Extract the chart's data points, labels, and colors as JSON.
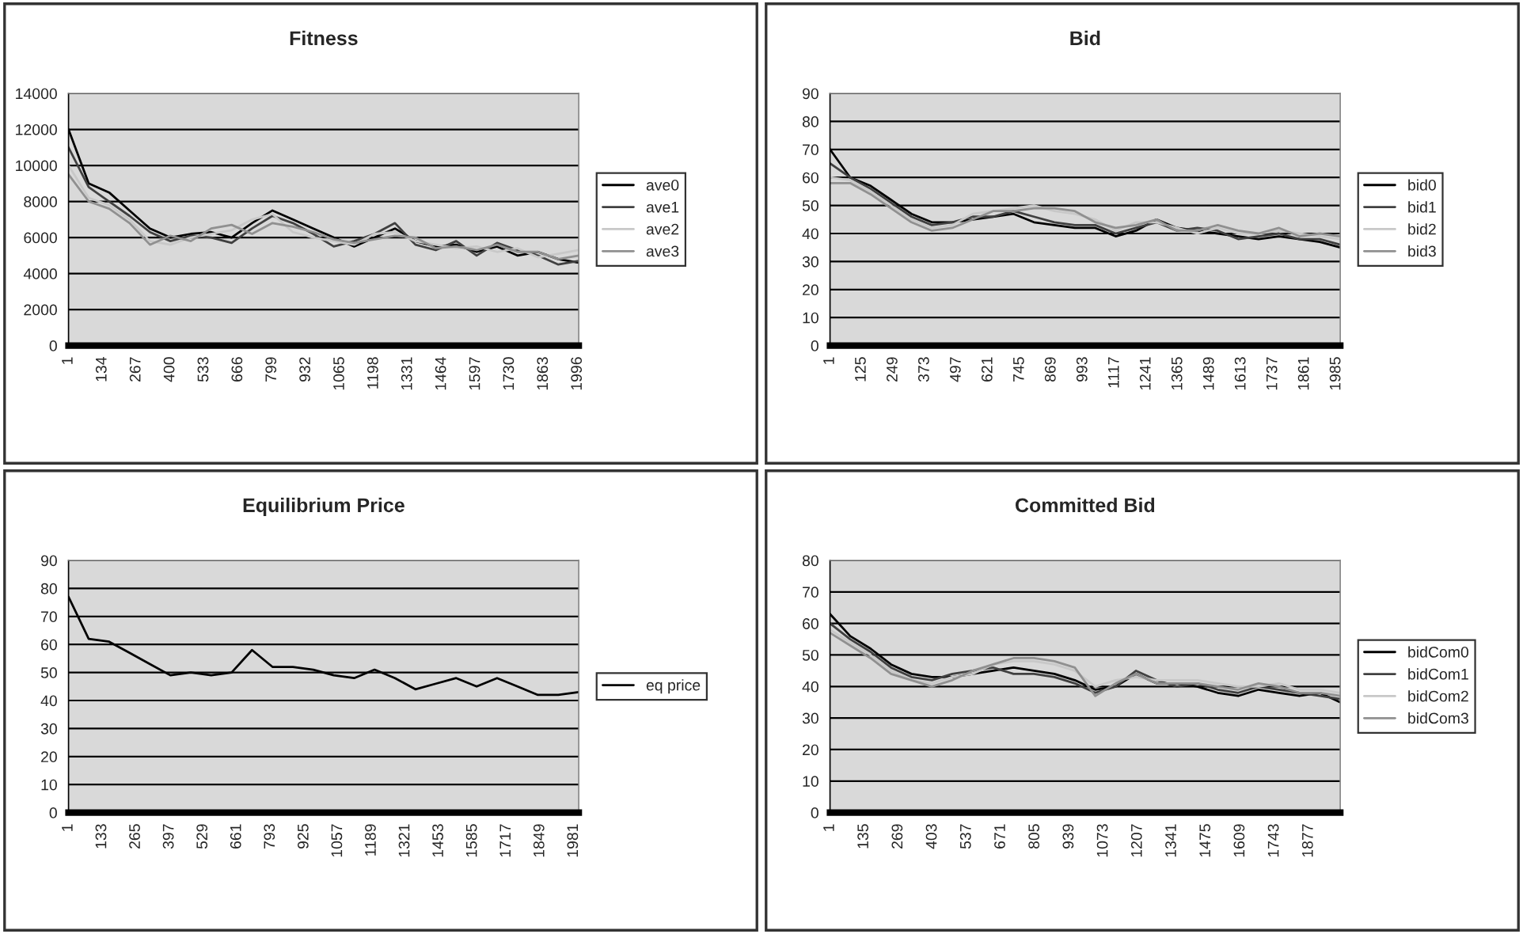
{
  "chart_data": [
    {
      "type": "line",
      "title": "Fitness",
      "x": [
        1,
        80,
        160,
        240,
        320,
        400,
        480,
        560,
        640,
        720,
        800,
        880,
        960,
        1040,
        1120,
        1200,
        1280,
        1360,
        1440,
        1520,
        1600,
        1680,
        1760,
        1840,
        1920,
        2000
      ],
      "series": [
        {
          "name": "ave0",
          "color": "#000000",
          "values": [
            12000,
            9000,
            8500,
            7500,
            6500,
            6000,
            6200,
            6300,
            6000,
            6800,
            7500,
            7000,
            6500,
            6000,
            5500,
            6000,
            6500,
            5800,
            5500,
            5600,
            5200,
            5500,
            5000,
            5200,
            4800,
            4600
          ]
        },
        {
          "name": "ave1",
          "color": "#404040",
          "values": [
            11000,
            8800,
            8000,
            7200,
            6300,
            5800,
            6100,
            6000,
            5700,
            6500,
            7200,
            6800,
            6200,
            5500,
            5800,
            6200,
            6800,
            5600,
            5300,
            5800,
            5000,
            5700,
            5300,
            5000,
            4500,
            4700
          ]
        },
        {
          "name": "ave2",
          "color": "#c8c8c8",
          "values": [
            10000,
            8200,
            7800,
            7000,
            5800,
            5600,
            6000,
            6200,
            6400,
            7000,
            7300,
            6300,
            6000,
            5800,
            5600,
            6200,
            6300,
            5800,
            5600,
            5400,
            5500,
            5200,
            5400,
            4900,
            5100,
            5300
          ]
        },
        {
          "name": "ave3",
          "color": "#909090",
          "values": [
            9500,
            8000,
            7600,
            6800,
            5600,
            6100,
            5800,
            6500,
            6700,
            6200,
            6800,
            6600,
            6300,
            5900,
            5700,
            5900,
            6100,
            6000,
            5400,
            5500,
            5300,
            5600,
            5200,
            5200,
            4800,
            5000
          ]
        }
      ],
      "xlim": [
        1,
        2000
      ],
      "xticks": [
        1,
        134,
        267,
        400,
        533,
        666,
        799,
        932,
        1065,
        1198,
        1331,
        1464,
        1597,
        1730,
        1863,
        1996
      ],
      "ylim": [
        0,
        14000
      ],
      "yticks": [
        0,
        2000,
        4000,
        6000,
        8000,
        10000,
        12000,
        14000
      ],
      "grid": "y",
      "legend": "right",
      "line_style": "solid"
    },
    {
      "type": "line",
      "title": "Bid",
      "x": [
        1,
        80,
        160,
        240,
        320,
        400,
        480,
        560,
        640,
        720,
        800,
        880,
        960,
        1040,
        1120,
        1200,
        1280,
        1360,
        1440,
        1520,
        1600,
        1680,
        1760,
        1840,
        1920,
        2000
      ],
      "series": [
        {
          "name": "bid0",
          "color": "#000000",
          "values": [
            70,
            60,
            57,
            52,
            47,
            44,
            44,
            45,
            46,
            47,
            44,
            43,
            42,
            42,
            39,
            41,
            45,
            42,
            41,
            40,
            39,
            38,
            39,
            38,
            37,
            35
          ]
        },
        {
          "name": "bid1",
          "color": "#404040",
          "values": [
            65,
            60,
            56,
            51,
            46,
            43,
            44,
            46,
            46,
            48,
            46,
            44,
            43,
            43,
            40,
            42,
            44,
            41,
            42,
            41,
            38,
            39,
            40,
            38,
            38,
            36
          ]
        },
        {
          "name": "bid2",
          "color": "#c8c8c8",
          "values": [
            60,
            59,
            55,
            50,
            45,
            42,
            43,
            47,
            48,
            49,
            50,
            48,
            47,
            45,
            41,
            44,
            44,
            42,
            40,
            42,
            40,
            40,
            41,
            40,
            39,
            38
          ]
        },
        {
          "name": "bid3",
          "color": "#909090",
          "values": [
            58,
            58,
            54,
            49,
            44,
            41,
            42,
            45,
            48,
            48,
            49,
            49,
            48,
            44,
            42,
            43,
            45,
            41,
            41,
            43,
            41,
            40,
            42,
            39,
            40,
            39
          ]
        }
      ],
      "xlim": [
        1,
        2000
      ],
      "xticks": [
        1,
        125,
        249,
        373,
        497,
        621,
        745,
        869,
        993,
        1117,
        1241,
        1365,
        1489,
        1613,
        1737,
        1861,
        1985
      ],
      "ylim": [
        0,
        90
      ],
      "yticks": [
        0,
        10,
        20,
        30,
        40,
        50,
        60,
        70,
        80,
        90
      ],
      "grid": "y",
      "legend": "right",
      "line_style": "solid"
    },
    {
      "type": "line",
      "title": "Equilibrium Price",
      "x": [
        1,
        80,
        160,
        240,
        320,
        400,
        480,
        560,
        640,
        720,
        800,
        880,
        960,
        1040,
        1120,
        1200,
        1280,
        1360,
        1440,
        1520,
        1600,
        1680,
        1760,
        1840,
        1920,
        2000
      ],
      "series": [
        {
          "name": "eq price",
          "color": "#000000",
          "values": [
            77,
            62,
            61,
            57,
            53,
            49,
            50,
            49,
            50,
            58,
            52,
            52,
            51,
            49,
            48,
            51,
            48,
            44,
            46,
            48,
            45,
            48,
            45,
            42,
            42,
            43
          ]
        }
      ],
      "xlim": [
        1,
        2000
      ],
      "xticks": [
        1,
        133,
        265,
        397,
        529,
        661,
        793,
        925,
        1057,
        1189,
        1321,
        1453,
        1585,
        1717,
        1849,
        1981
      ],
      "ylim": [
        0,
        90
      ],
      "yticks": [
        0,
        10,
        20,
        30,
        40,
        50,
        60,
        70,
        80,
        90
      ],
      "grid": "y",
      "legend": "right",
      "line_style": "solid"
    },
    {
      "type": "line",
      "title": "Committed Bid",
      "x": [
        1,
        80,
        160,
        240,
        320,
        400,
        480,
        560,
        640,
        720,
        800,
        880,
        960,
        1040,
        1120,
        1200,
        1280,
        1360,
        1440,
        1520,
        1600,
        1680,
        1760,
        1840,
        1920,
        2000
      ],
      "series": [
        {
          "name": "bidCom0",
          "color": "#000000",
          "values": [
            63,
            56,
            52,
            47,
            44,
            43,
            43,
            44,
            45,
            46,
            45,
            44,
            42,
            39,
            40,
            44,
            41,
            41,
            40,
            38,
            37,
            39,
            38,
            37,
            38,
            35
          ]
        },
        {
          "name": "bidCom1",
          "color": "#404040",
          "values": [
            60,
            55,
            51,
            46,
            43,
            42,
            44,
            45,
            46,
            44,
            44,
            43,
            41,
            38,
            40,
            45,
            42,
            40,
            41,
            39,
            38,
            40,
            39,
            38,
            37,
            36
          ]
        },
        {
          "name": "bidCom2",
          "color": "#c8c8c8",
          "values": [
            58,
            54,
            50,
            45,
            42,
            41,
            43,
            44,
            47,
            48,
            48,
            47,
            45,
            40,
            42,
            43,
            42,
            42,
            42,
            41,
            40,
            40,
            41,
            39,
            39,
            38
          ]
        },
        {
          "name": "bidCom3",
          "color": "#909090",
          "values": [
            57,
            53,
            49,
            44,
            42,
            40,
            42,
            45,
            47,
            49,
            49,
            48,
            46,
            37,
            41,
            44,
            41,
            41,
            41,
            40,
            39,
            41,
            40,
            38,
            38,
            37
          ]
        }
      ],
      "xlim": [
        1,
        2000
      ],
      "xticks": [
        1,
        135,
        269,
        403,
        537,
        671,
        805,
        939,
        1073,
        1207,
        1341,
        1475,
        1609,
        1743,
        1877
      ],
      "ylim": [
        0,
        80
      ],
      "yticks": [
        0,
        10,
        20,
        30,
        40,
        50,
        60,
        70,
        80
      ],
      "grid": "y",
      "legend": "right",
      "line_style": "solid"
    }
  ]
}
